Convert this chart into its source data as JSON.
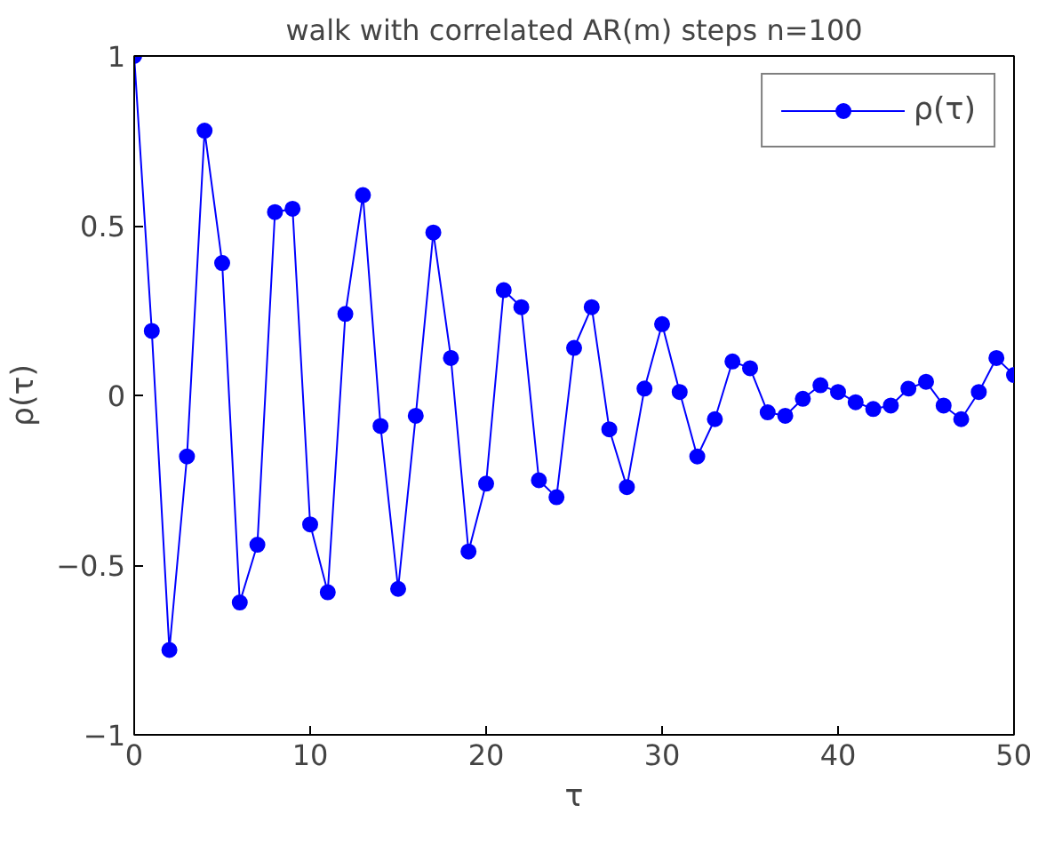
{
  "chart_data": {
    "type": "line",
    "title": "walk with correlated AR(m) steps n=100",
    "xlabel": "τ",
    "ylabel": "ρ(τ)",
    "x": [
      0,
      1,
      2,
      3,
      4,
      5,
      6,
      7,
      8,
      9,
      10,
      11,
      12,
      13,
      14,
      15,
      16,
      17,
      18,
      19,
      20,
      21,
      22,
      23,
      24,
      25,
      26,
      27,
      28,
      29,
      30,
      31,
      32,
      33,
      34,
      35,
      36,
      37,
      38,
      39,
      40,
      41,
      42,
      43,
      44,
      45,
      46,
      47,
      48,
      49,
      50
    ],
    "series": [
      {
        "name": "ρ(τ)",
        "color": "#0000ff",
        "values": [
          1,
          0.19,
          -0.75,
          -0.18,
          0.78,
          0.39,
          -0.61,
          -0.44,
          0.54,
          0.55,
          -0.38,
          -0.58,
          0.24,
          0.59,
          -0.09,
          -0.57,
          -0.06,
          0.48,
          0.11,
          -0.46,
          -0.26,
          0.31,
          0.26,
          -0.25,
          -0.3,
          0.14,
          0.26,
          -0.1,
          -0.27,
          0.02,
          0.21,
          0.01,
          -0.18,
          -0.07,
          0.1,
          0.08,
          -0.05,
          -0.06,
          -0.01,
          0.03,
          0.01,
          -0.02,
          -0.04,
          -0.03,
          0.02,
          0.04,
          -0.03,
          -0.07,
          0.01,
          0.11,
          0.06
        ]
      }
    ],
    "xlim": [
      0,
      50
    ],
    "ylim": [
      -1,
      1
    ],
    "xticks": [
      0,
      10,
      20,
      30,
      40,
      50
    ],
    "yticks": [
      -1,
      -0.5,
      0,
      0.5,
      1
    ],
    "marker": "circle",
    "line_style": "solid",
    "legend": "top right",
    "grid": false
  }
}
